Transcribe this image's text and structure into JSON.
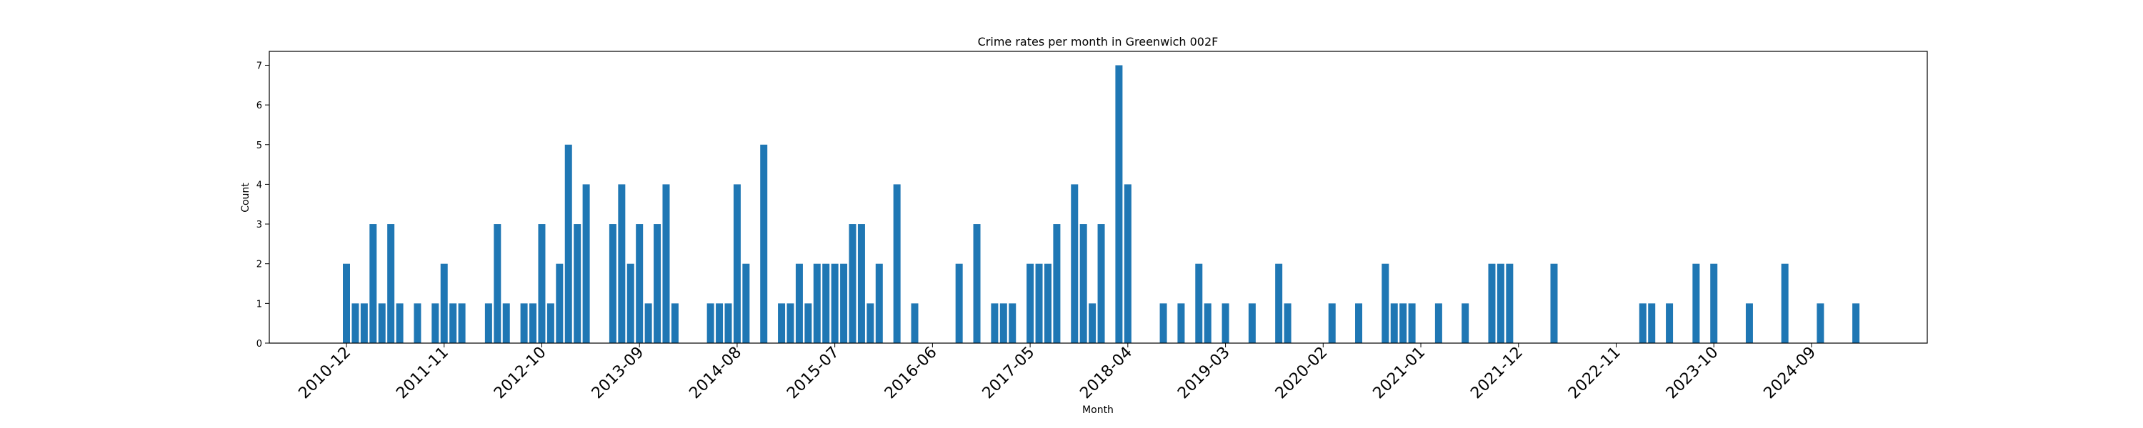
{
  "chart_data": {
    "type": "bar",
    "title": "Crime rates per month in Greenwich 002F",
    "xlabel": "Month",
    "ylabel": "Count",
    "ylim": [
      0,
      7.35
    ],
    "yticks": [
      0,
      1,
      2,
      3,
      4,
      5,
      6,
      7
    ],
    "xticks": [
      "2010-12",
      "2011-11",
      "2012-10",
      "2013-09",
      "2014-08",
      "2015-07",
      "2016-06",
      "2017-05",
      "2018-04",
      "2019-03",
      "2020-02",
      "2021-01",
      "2021-12",
      "2022-11",
      "2023-10",
      "2024-09"
    ],
    "grid": false,
    "color": "#1f77b4",
    "points": [
      {
        "month": "2010-12",
        "value": 2
      },
      {
        "month": "2011-01",
        "value": 1
      },
      {
        "month": "2011-02",
        "value": 1
      },
      {
        "month": "2011-03",
        "value": 3
      },
      {
        "month": "2011-04",
        "value": 1
      },
      {
        "month": "2011-05",
        "value": 3
      },
      {
        "month": "2011-06",
        "value": 1
      },
      {
        "month": "2011-08",
        "value": 1
      },
      {
        "month": "2011-10",
        "value": 1
      },
      {
        "month": "2011-11",
        "value": 2
      },
      {
        "month": "2011-12",
        "value": 1
      },
      {
        "month": "2012-01",
        "value": 1
      },
      {
        "month": "2012-04",
        "value": 1
      },
      {
        "month": "2012-05",
        "value": 3
      },
      {
        "month": "2012-06",
        "value": 1
      },
      {
        "month": "2012-08",
        "value": 1
      },
      {
        "month": "2012-09",
        "value": 1
      },
      {
        "month": "2012-10",
        "value": 3
      },
      {
        "month": "2012-11",
        "value": 1
      },
      {
        "month": "2012-12",
        "value": 2
      },
      {
        "month": "2013-01",
        "value": 5
      },
      {
        "month": "2013-02",
        "value": 3
      },
      {
        "month": "2013-03",
        "value": 4
      },
      {
        "month": "2013-06",
        "value": 3
      },
      {
        "month": "2013-07",
        "value": 4
      },
      {
        "month": "2013-08",
        "value": 2
      },
      {
        "month": "2013-09",
        "value": 3
      },
      {
        "month": "2013-10",
        "value": 1
      },
      {
        "month": "2013-11",
        "value": 3
      },
      {
        "month": "2013-12",
        "value": 4
      },
      {
        "month": "2014-01",
        "value": 1
      },
      {
        "month": "2014-05",
        "value": 1
      },
      {
        "month": "2014-06",
        "value": 1
      },
      {
        "month": "2014-07",
        "value": 1
      },
      {
        "month": "2014-08",
        "value": 4
      },
      {
        "month": "2014-09",
        "value": 2
      },
      {
        "month": "2014-11",
        "value": 5
      },
      {
        "month": "2015-01",
        "value": 1
      },
      {
        "month": "2015-02",
        "value": 1
      },
      {
        "month": "2015-03",
        "value": 2
      },
      {
        "month": "2015-04",
        "value": 1
      },
      {
        "month": "2015-05",
        "value": 2
      },
      {
        "month": "2015-06",
        "value": 2
      },
      {
        "month": "2015-07",
        "value": 2
      },
      {
        "month": "2015-08",
        "value": 2
      },
      {
        "month": "2015-09",
        "value": 3
      },
      {
        "month": "2015-10",
        "value": 3
      },
      {
        "month": "2015-11",
        "value": 1
      },
      {
        "month": "2015-12",
        "value": 2
      },
      {
        "month": "2016-02",
        "value": 4
      },
      {
        "month": "2016-04",
        "value": 1
      },
      {
        "month": "2016-09",
        "value": 2
      },
      {
        "month": "2016-11",
        "value": 3
      },
      {
        "month": "2017-01",
        "value": 1
      },
      {
        "month": "2017-02",
        "value": 1
      },
      {
        "month": "2017-03",
        "value": 1
      },
      {
        "month": "2017-05",
        "value": 2
      },
      {
        "month": "2017-06",
        "value": 2
      },
      {
        "month": "2017-07",
        "value": 2
      },
      {
        "month": "2017-08",
        "value": 3
      },
      {
        "month": "2017-10",
        "value": 4
      },
      {
        "month": "2017-11",
        "value": 3
      },
      {
        "month": "2017-12",
        "value": 1
      },
      {
        "month": "2018-01",
        "value": 3
      },
      {
        "month": "2018-03",
        "value": 7
      },
      {
        "month": "2018-04",
        "value": 4
      },
      {
        "month": "2018-08",
        "value": 1
      },
      {
        "month": "2018-10",
        "value": 1
      },
      {
        "month": "2018-12",
        "value": 2
      },
      {
        "month": "2019-01",
        "value": 1
      },
      {
        "month": "2019-03",
        "value": 1
      },
      {
        "month": "2019-06",
        "value": 1
      },
      {
        "month": "2019-09",
        "value": 2
      },
      {
        "month": "2019-10",
        "value": 1
      },
      {
        "month": "2020-03",
        "value": 1
      },
      {
        "month": "2020-06",
        "value": 1
      },
      {
        "month": "2020-09",
        "value": 2
      },
      {
        "month": "2020-10",
        "value": 1
      },
      {
        "month": "2020-11",
        "value": 1
      },
      {
        "month": "2020-12",
        "value": 1
      },
      {
        "month": "2021-03",
        "value": 1
      },
      {
        "month": "2021-06",
        "value": 1
      },
      {
        "month": "2021-09",
        "value": 2
      },
      {
        "month": "2021-10",
        "value": 2
      },
      {
        "month": "2021-11",
        "value": 2
      },
      {
        "month": "2022-04",
        "value": 2
      },
      {
        "month": "2023-02",
        "value": 1
      },
      {
        "month": "2023-03",
        "value": 1
      },
      {
        "month": "2023-05",
        "value": 1
      },
      {
        "month": "2023-08",
        "value": 2
      },
      {
        "month": "2023-10",
        "value": 2
      },
      {
        "month": "2024-02",
        "value": 1
      },
      {
        "month": "2024-06",
        "value": 2
      },
      {
        "month": "2024-10",
        "value": 1
      },
      {
        "month": "2025-02",
        "value": 1
      }
    ]
  }
}
